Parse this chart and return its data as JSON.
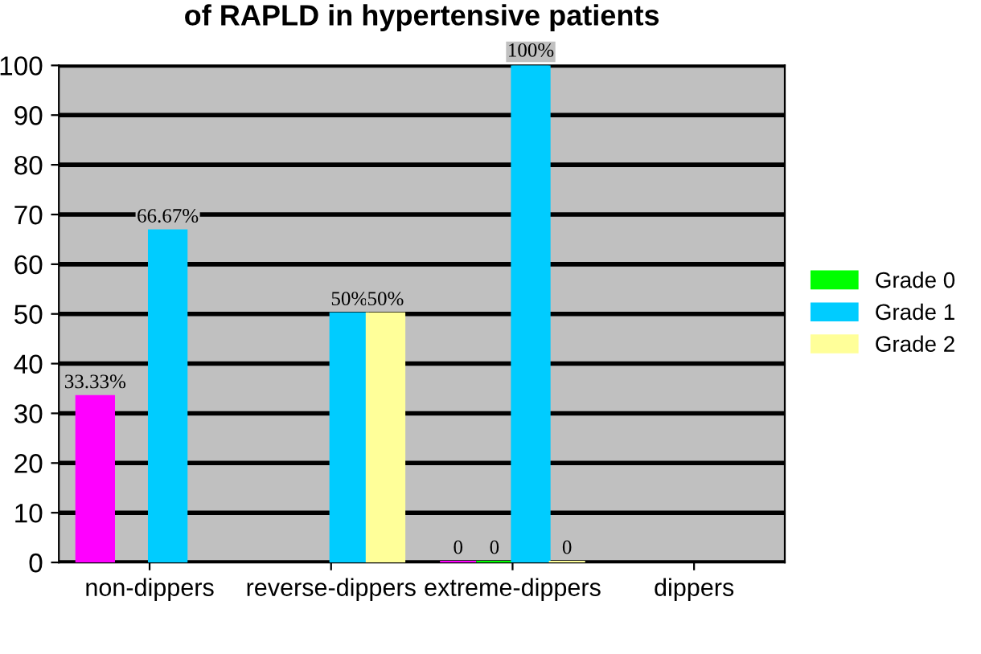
{
  "chart_data": {
    "type": "bar",
    "title": "of RAPLD in hypertensive patients",
    "categories": [
      "non-dippers",
      "reverse-dippers",
      "extreme-dippers",
      "dippers"
    ],
    "series": [
      {
        "color": "#ff00ff",
        "values": [
          33.33,
          null,
          0,
          null
        ],
        "value_labels": [
          "33.33%",
          null,
          "0",
          null
        ]
      },
      {
        "name": "Grade 0",
        "color": "#00ff00",
        "values": [
          null,
          null,
          0,
          null
        ],
        "value_labels": [
          null,
          null,
          "0",
          null
        ]
      },
      {
        "name": "Grade 1",
        "color": "#00ccff",
        "values": [
          66.67,
          50,
          100,
          null
        ],
        "value_labels": [
          "66.67%",
          "50%",
          "100%",
          null
        ]
      },
      {
        "name": "Grade 2",
        "color": "#ffff99",
        "values": [
          null,
          50,
          0,
          null
        ],
        "value_labels": [
          null,
          "50%",
          "0",
          null
        ]
      }
    ],
    "ylim": [
      0,
      100
    ],
    "yticks": [
      0,
      10,
      20,
      30,
      40,
      50,
      60,
      70,
      80,
      90,
      100
    ],
    "grid": "y",
    "legend": "right"
  }
}
